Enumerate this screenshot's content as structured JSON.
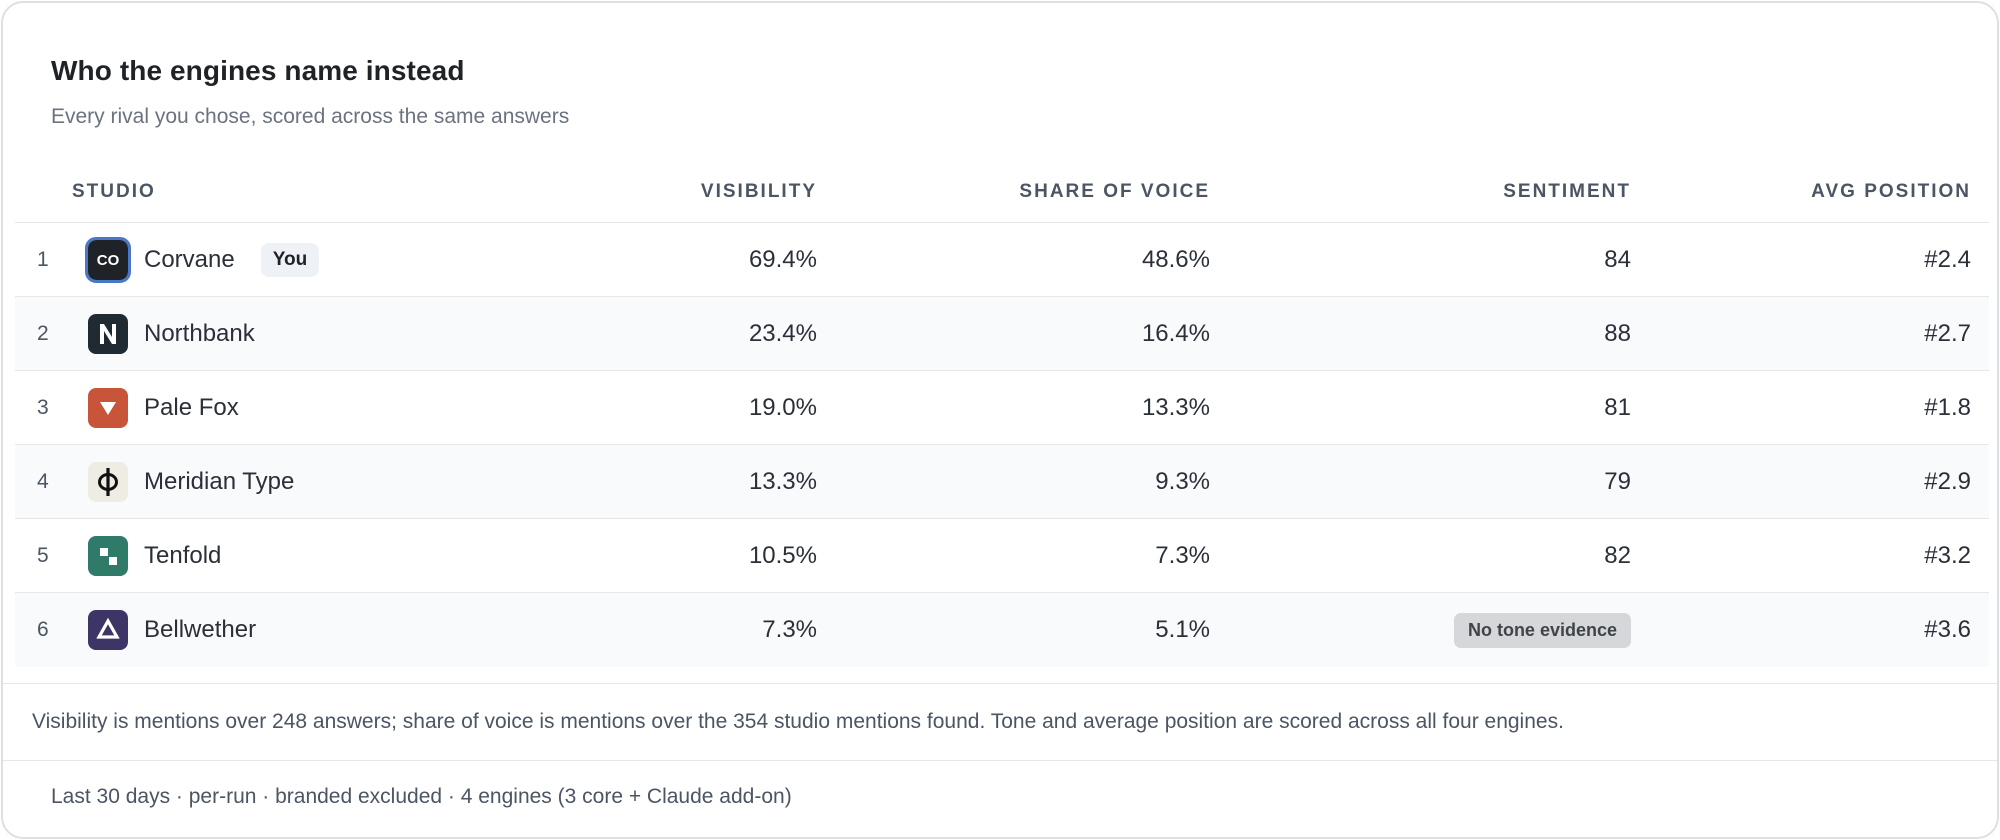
{
  "header": {
    "title": "Who the engines name instead",
    "subtitle": "Every rival you chose, scored across the same answers"
  },
  "table": {
    "columns": {
      "studio": "STUDIO",
      "visibility": "VISIBILITY",
      "share_of_voice": "SHARE OF VOICE",
      "sentiment": "SENTIMENT",
      "avg_position": "AVG POSITION"
    },
    "you_badge": "You",
    "rows": [
      {
        "rank": "1",
        "name": "Corvane",
        "visibility": "69.4%",
        "share_of_voice": "48.6%",
        "sentiment": "84",
        "avg_position": "#2.4",
        "logo_text": "CO",
        "logo_color": "#1f2328"
      },
      {
        "rank": "2",
        "name": "Northbank",
        "visibility": "23.4%",
        "share_of_voice": "16.4%",
        "sentiment": "88",
        "avg_position": "#2.7",
        "logo_icon": "n-letter-icon",
        "logo_color": "#1f2a33"
      },
      {
        "rank": "3",
        "name": "Pale Fox",
        "visibility": "19.0%",
        "share_of_voice": "13.3%",
        "sentiment": "81",
        "avg_position": "#1.8",
        "logo_icon": "triangle-down-icon",
        "logo_color": "#c8553a"
      },
      {
        "rank": "4",
        "name": "Meridian Type",
        "visibility": "13.3%",
        "share_of_voice": "9.3%",
        "sentiment": "79",
        "avg_position": "#2.9",
        "logo_icon": "phi-icon",
        "logo_color": "#efece4"
      },
      {
        "rank": "5",
        "name": "Tenfold",
        "visibility": "10.5%",
        "share_of_voice": "7.3%",
        "sentiment": "82",
        "avg_position": "#3.2",
        "logo_icon": "squares-icon",
        "logo_color": "#2f7a68"
      },
      {
        "rank": "6",
        "name": "Bellwether",
        "visibility": "7.3%",
        "share_of_voice": "5.1%",
        "sentiment": "No tone evidence",
        "avg_position": "#3.6",
        "logo_icon": "triangle-up-icon",
        "logo_color": "#3d3566"
      }
    ]
  },
  "note": "Visibility is mentions over 248 answers; share of voice is mentions over the 354 studio mentions found. Tone and average position are scored across all four engines.",
  "footer": "Last 30 days · per-run · branded excluded · 4 engines (3 core + Claude add-on)"
}
